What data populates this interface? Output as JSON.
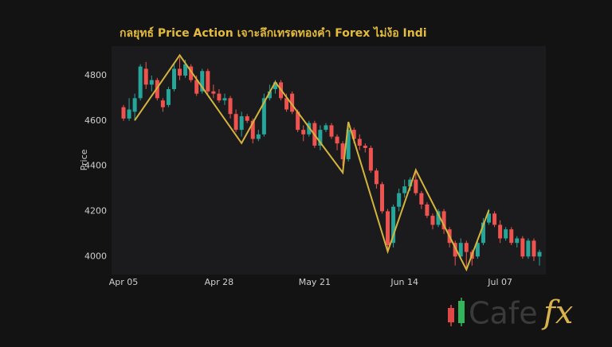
{
  "chart_data": {
    "type": "candlestick",
    "title": "กลยุทธ์ Price Action เจาะลึกเทรดทองคำ Forex ไม่ง้อ Indi",
    "y_label": "Price",
    "categories": [
      "Apr 05",
      "Apr 06",
      "Apr 07",
      "Apr 08",
      "Apr 09",
      "Apr 12",
      "Apr 13",
      "Apr 14",
      "Apr 15",
      "Apr 16",
      "Apr 19",
      "Apr 20",
      "Apr 21",
      "Apr 22",
      "Apr 23",
      "Apr 26",
      "Apr 27",
      "Apr 28",
      "Apr 29",
      "Apr 30",
      "May 03",
      "May 04",
      "May 05",
      "May 06",
      "May 07",
      "May 10",
      "May 11",
      "May 12",
      "May 13",
      "May 14",
      "May 17",
      "May 18",
      "May 19",
      "May 20",
      "May 21",
      "May 24",
      "May 25",
      "May 26",
      "May 27",
      "May 28",
      "May 31",
      "Jun 01",
      "Jun 02",
      "Jun 03",
      "Jun 04",
      "Jun 07",
      "Jun 08",
      "Jun 09",
      "Jun 10",
      "Jun 11",
      "Jun 14",
      "Jun 15",
      "Jun 16",
      "Jun 17",
      "Jun 18",
      "Jun 21",
      "Jun 22",
      "Jun 23",
      "Jun 24",
      "Jun 25",
      "Jun 28",
      "Jun 29",
      "Jun 30",
      "Jul 01",
      "Jul 02",
      "Jul 05",
      "Jul 06",
      "Jul 07",
      "Jul 08",
      "Jul 09",
      "Jul 12",
      "Jul 13",
      "Jul 14",
      "Jul 15",
      "Jul 16"
    ],
    "open": [
      4660,
      4610,
      4640,
      4700,
      4830,
      4760,
      4780,
      4690,
      4670,
      4740,
      4830,
      4800,
      4840,
      4780,
      4730,
      4820,
      4730,
      4720,
      4690,
      4700,
      4630,
      4560,
      4620,
      4600,
      4520,
      4540,
      4700,
      4740,
      4770,
      4700,
      4720,
      4640,
      4560,
      4540,
      4590,
      4490,
      4560,
      4580,
      4530,
      4500,
      4430,
      4560,
      4520,
      4490,
      4480,
      4380,
      4320,
      4200,
      4060,
      4220,
      4280,
      4310,
      4340,
      4280,
      4230,
      4180,
      4140,
      4200,
      4120,
      4060,
      4000,
      4060,
      4020,
      4000,
      4060,
      4150,
      4190,
      4140,
      4080,
      4120,
      4060,
      4080,
      4000,
      4070,
      4000
    ],
    "high": [
      4670,
      4700,
      4720,
      4850,
      4860,
      4800,
      4790,
      4700,
      4750,
      4850,
      4880,
      4870,
      4850,
      4800,
      4830,
      4830,
      4760,
      4740,
      4720,
      4710,
      4650,
      4640,
      4630,
      4610,
      4560,
      4720,
      4760,
      4780,
      4780,
      4720,
      4730,
      4650,
      4580,
      4600,
      4600,
      4580,
      4590,
      4590,
      4540,
      4510,
      4590,
      4570,
      4540,
      4500,
      4490,
      4390,
      4330,
      4210,
      4230,
      4300,
      4340,
      4350,
      4390,
      4290,
      4240,
      4190,
      4210,
      4210,
      4130,
      4070,
      4080,
      4070,
      4030,
      4080,
      4170,
      4210,
      4200,
      4160,
      4130,
      4130,
      4090,
      4090,
      4080,
      4080,
      4030
    ],
    "low": [
      4600,
      4600,
      4600,
      4690,
      4740,
      4730,
      4690,
      4640,
      4660,
      4730,
      4780,
      4790,
      4770,
      4710,
      4720,
      4720,
      4700,
      4680,
      4670,
      4610,
      4550,
      4530,
      4590,
      4500,
      4510,
      4530,
      4690,
      4720,
      4690,
      4640,
      4630,
      4550,
      4510,
      4530,
      4480,
      4470,
      4550,
      4520,
      4470,
      4400,
      4420,
      4500,
      4470,
      4460,
      4370,
      4300,
      4190,
      4030,
      4040,
      4200,
      4260,
      4290,
      4270,
      4210,
      4170,
      4120,
      4130,
      4100,
      4040,
      3960,
      3990,
      3950,
      3960,
      3990,
      4050,
      4140,
      4130,
      4060,
      4070,
      4050,
      4040,
      3990,
      3990,
      3980,
      3960
    ],
    "close": [
      4610,
      4650,
      4700,
      4840,
      4760,
      4780,
      4700,
      4660,
      4740,
      4830,
      4800,
      4850,
      4780,
      4720,
      4820,
      4730,
      4720,
      4690,
      4700,
      4630,
      4560,
      4620,
      4600,
      4520,
      4540,
      4700,
      4730,
      4770,
      4700,
      4650,
      4640,
      4560,
      4540,
      4590,
      4490,
      4560,
      4580,
      4530,
      4500,
      4430,
      4560,
      4520,
      4490,
      4480,
      4380,
      4320,
      4200,
      4050,
      4220,
      4280,
      4310,
      4340,
      4280,
      4230,
      4180,
      4140,
      4200,
      4120,
      4060,
      4000,
      4060,
      4020,
      3990,
      4060,
      4150,
      4190,
      4140,
      4080,
      4120,
      4060,
      4080,
      4000,
      4070,
      4000,
      4020
    ],
    "up_color": "#26a69a",
    "down_color": "#ef5350",
    "zigzag": {
      "color": "#d4b43c",
      "x": [
        "Apr 07",
        "Apr 19",
        "May 04",
        "May 12",
        "May 28",
        "May 31",
        "Jun 09",
        "Jun 16",
        "Jun 29",
        "Jul 05"
      ],
      "values": [
        4602,
        4890,
        4501,
        4771,
        4371,
        4595,
        4022,
        4382,
        3942,
        4205
      ]
    },
    "xticks": [
      "Apr 05",
      "Apr 28",
      "May 21",
      "Jun 14",
      "Jul 07"
    ],
    "ylim": [
      3920,
      4930
    ],
    "yticks": [
      4000,
      4200,
      4400,
      4600,
      4800
    ],
    "grid": false
  },
  "logo": {
    "text": "Cafe",
    "accent": "fx"
  }
}
